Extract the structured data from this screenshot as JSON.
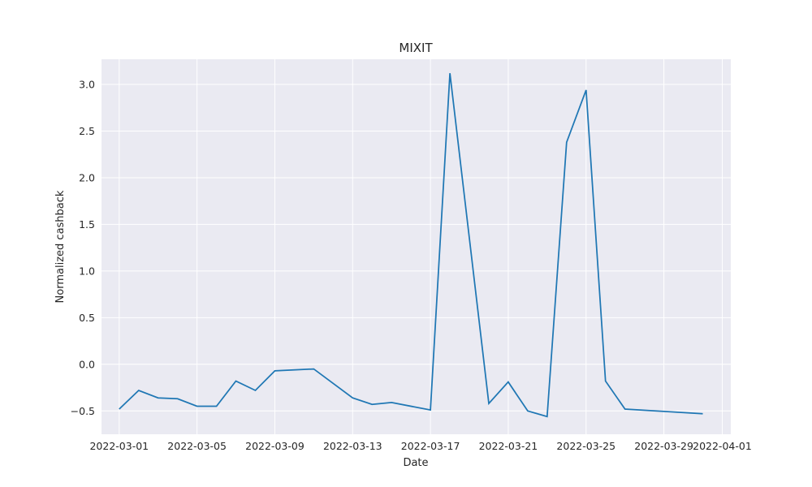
{
  "chart_data": {
    "type": "line",
    "title": "MIXIT",
    "xlabel": "Date",
    "ylabel": "Normalized cashback",
    "grid": true,
    "xlim": [
      "2022-02-28",
      "2022-04-01"
    ],
    "ylim": [
      -0.75,
      3.27
    ],
    "x_ticks": [
      "2022-03-01",
      "2022-03-05",
      "2022-03-09",
      "2022-03-13",
      "2022-03-17",
      "2022-03-21",
      "2022-03-25",
      "2022-03-29",
      "2022-04-01"
    ],
    "y_ticks": [
      "-0.5",
      "0.0",
      "0.5",
      "1.0",
      "1.5",
      "2.0",
      "2.5",
      "3.0"
    ],
    "series": [
      {
        "color": "#1f77b4",
        "x": [
          "2022-03-01",
          "2022-03-02",
          "2022-03-03",
          "2022-03-04",
          "2022-03-05",
          "2022-03-06",
          "2022-03-07",
          "2022-03-08",
          "2022-03-09",
          "2022-03-11",
          "2022-03-13",
          "2022-03-14",
          "2022-03-15",
          "2022-03-17",
          "2022-03-18",
          "2022-03-20",
          "2022-03-21",
          "2022-03-22",
          "2022-03-23",
          "2022-03-24",
          "2022-03-25",
          "2022-03-26",
          "2022-03-27",
          "2022-03-31"
        ],
        "y": [
          -0.48,
          -0.28,
          -0.36,
          -0.37,
          -0.45,
          -0.45,
          -0.18,
          -0.28,
          -0.07,
          -0.05,
          -0.36,
          -0.43,
          -0.41,
          -0.49,
          3.12,
          -0.42,
          -0.19,
          -0.5,
          -0.56,
          2.38,
          2.94,
          -0.18,
          -0.48,
          -0.53
        ]
      }
    ]
  }
}
